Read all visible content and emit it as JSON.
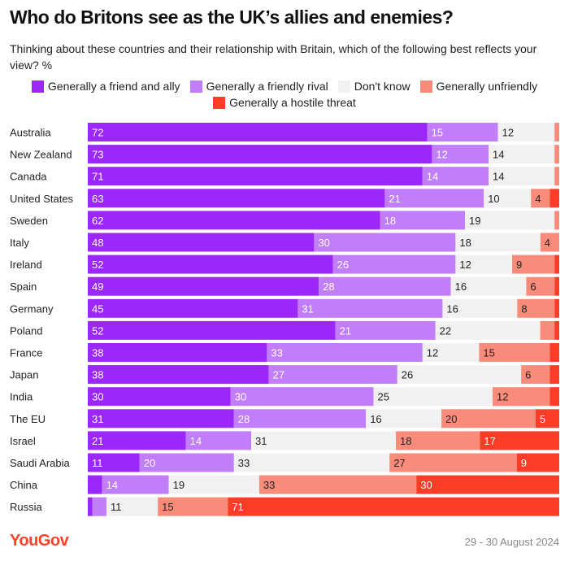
{
  "chart_data": {
    "type": "bar",
    "orientation": "horizontal-stacked-100",
    "title": "Who do Britons see as the UK’s allies and enemies?",
    "subtitle": "Thinking about these countries and their relationship with Britain, which of the following best reflects your view? %",
    "legend_position": "top",
    "grid": false,
    "categories": [
      "Australia",
      "New Zealand",
      "Canada",
      "United States",
      "Sweden",
      "Italy",
      "Ireland",
      "Spain",
      "Germany",
      "Poland",
      "France",
      "Japan",
      "India",
      "The EU",
      "Israel",
      "Saudi Arabia",
      "China",
      "Russia"
    ],
    "series": [
      {
        "name": "Generally a friend and ally",
        "color": "#9b27fb",
        "values": [
          72,
          73,
          71,
          63,
          62,
          48,
          52,
          49,
          45,
          52,
          38,
          38,
          30,
          31,
          21,
          11,
          3,
          1
        ]
      },
      {
        "name": "Generally a friendly rival",
        "color": "#c27dfa",
        "values": [
          15,
          12,
          14,
          21,
          18,
          30,
          26,
          28,
          31,
          21,
          33,
          27,
          30,
          28,
          14,
          20,
          14,
          3
        ]
      },
      {
        "name": "Don't know",
        "color": "#f1f1f1",
        "values": [
          12,
          14,
          14,
          10,
          19,
          18,
          12,
          16,
          16,
          22,
          12,
          26,
          25,
          16,
          31,
          33,
          19,
          11
        ]
      },
      {
        "name": "Generally unfriendly",
        "color": "#f98b7a",
        "values": [
          1,
          1,
          1,
          4,
          1,
          4,
          9,
          6,
          8,
          3,
          15,
          6,
          12,
          20,
          18,
          27,
          33,
          15
        ]
      },
      {
        "name": "Generally a hostile threat",
        "color": "#fb3d28",
        "values": [
          0,
          0,
          0,
          2,
          0,
          0,
          1,
          1,
          1,
          1,
          2,
          2,
          2,
          5,
          17,
          9,
          30,
          71
        ]
      }
    ],
    "label_threshold": 4,
    "xlim": [
      0,
      100
    ]
  },
  "footer": {
    "logo": "YouGov",
    "date": "29 - 30 August 2024"
  }
}
